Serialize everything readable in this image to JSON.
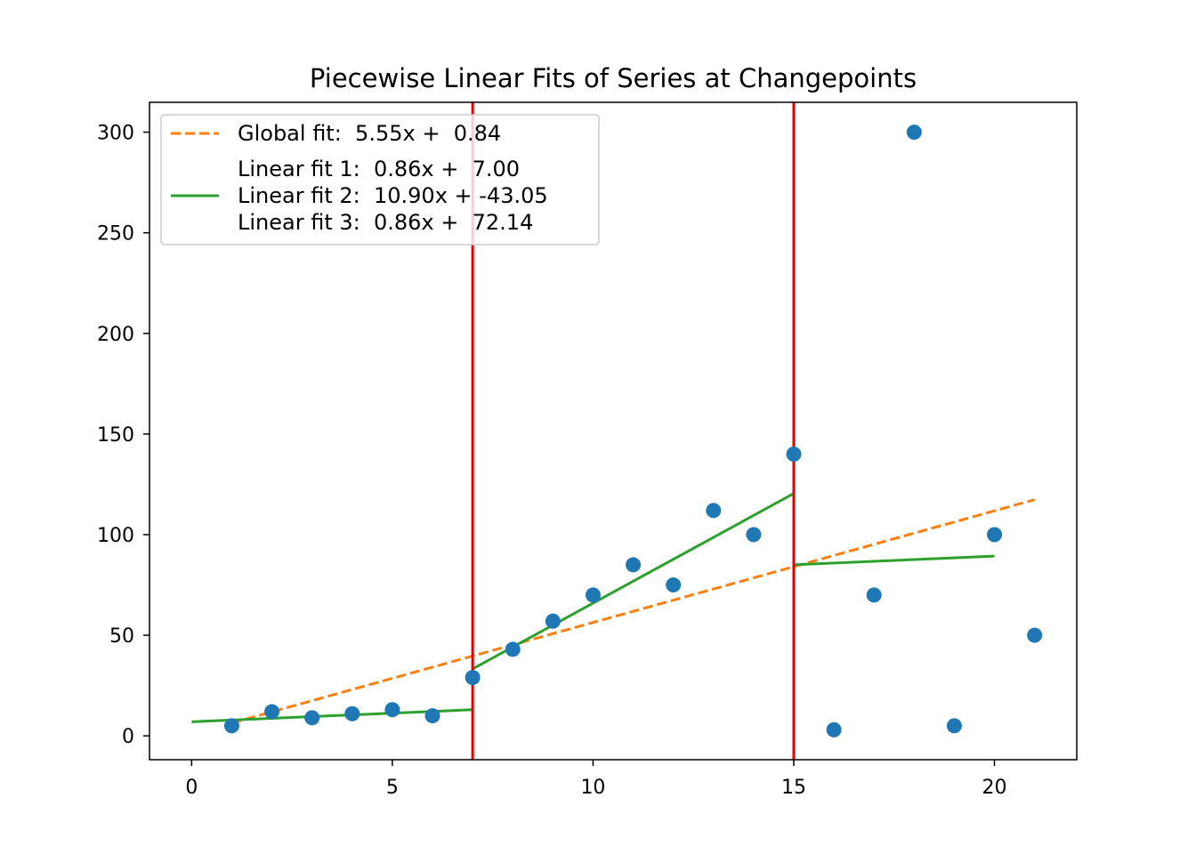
{
  "chart_data": {
    "type": "scatter",
    "title": "Piecewise Linear Fits of Series at Changepoints",
    "xlabel": "",
    "ylabel": "",
    "xlim": [
      -1.05,
      22.05
    ],
    "ylim": [
      -11.85,
      314.85
    ],
    "x_ticks": [
      0,
      5,
      10,
      15,
      20
    ],
    "y_ticks": [
      0,
      50,
      100,
      150,
      200,
      250,
      300
    ],
    "grid": false,
    "legend_position": "top-left",
    "points": {
      "x": [
        1,
        2,
        3,
        4,
        5,
        6,
        7,
        8,
        9,
        10,
        11,
        12,
        13,
        14,
        15,
        16,
        17,
        18,
        19,
        20,
        21
      ],
      "y": [
        5,
        12,
        9,
        11,
        13,
        10,
        29,
        43,
        57,
        70,
        85,
        75,
        112,
        100,
        140,
        3,
        70,
        300,
        5,
        100,
        50
      ],
      "color": "#1f77b4"
    },
    "changepoints": [
      7,
      15
    ],
    "changepoint_color": "#e60000",
    "global_fit": {
      "label": "Global fit:  5.55x +  0.84",
      "slope": 5.55,
      "intercept": 0.84,
      "x_range": [
        1,
        21
      ],
      "color": "#ff7f0e",
      "style": "dashed"
    },
    "segment_fits": [
      {
        "label": "Linear fit 1:  0.86x +  7.00",
        "slope": 0.86,
        "intercept": 7.0,
        "x_range": [
          0,
          7
        ]
      },
      {
        "label": "Linear fit 2:  10.90x + -43.05",
        "slope": 10.9,
        "intercept": -43.05,
        "x_range": [
          7,
          15
        ]
      },
      {
        "label": "Linear fit 3:  0.86x +  72.14",
        "slope": 0.86,
        "intercept": 72.14,
        "x_range": [
          15,
          20
        ]
      }
    ],
    "segment_fit_color": "#2ca02c"
  }
}
